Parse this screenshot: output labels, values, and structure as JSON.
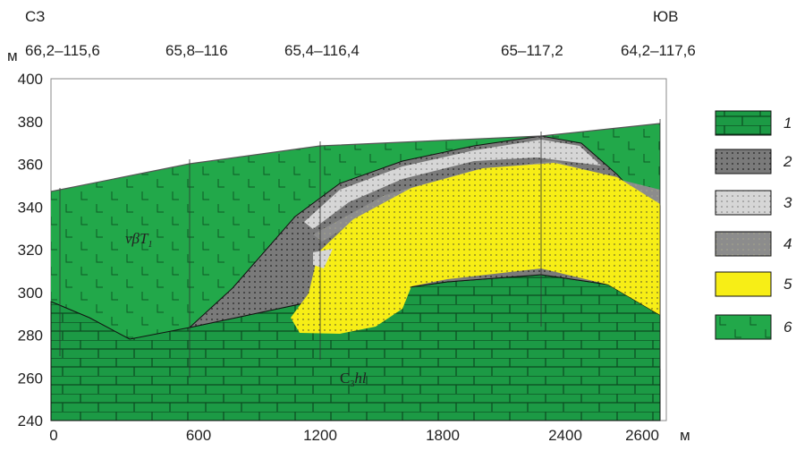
{
  "header": {
    "left_direction": "СЗ",
    "right_direction": "ЮВ",
    "y_unit": "м",
    "x_unit": "м"
  },
  "wells": [
    "66,2–115,6",
    "65,8–116",
    "65,4–116,4",
    "65–117,2",
    "64,2–117,6"
  ],
  "y_axis": {
    "ticks": [
      "400",
      "380",
      "360",
      "340",
      "320",
      "300",
      "280",
      "260",
      "240"
    ]
  },
  "x_axis": {
    "ticks": [
      "0",
      "600",
      "1200",
      "1800",
      "2400",
      "2600"
    ]
  },
  "formations": {
    "upper": {
      "symbol": "νβT",
      "index": "1"
    },
    "lower": {
      "symbol": "C",
      "index": "3",
      "suffix": "hl"
    }
  },
  "legend": [
    "1",
    "2",
    "3",
    "4",
    "5",
    "6"
  ]
}
